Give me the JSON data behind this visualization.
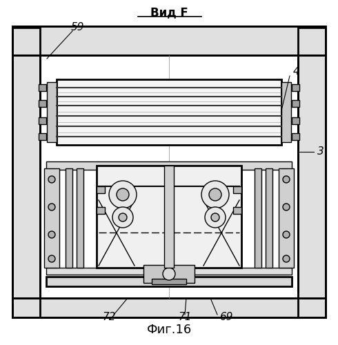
{
  "title": "Вид F",
  "fig_label": "Фиг.16",
  "bg_color": "#ffffff",
  "line_color": "#000000",
  "line_width": 1.0,
  "thick_line": 2.0
}
